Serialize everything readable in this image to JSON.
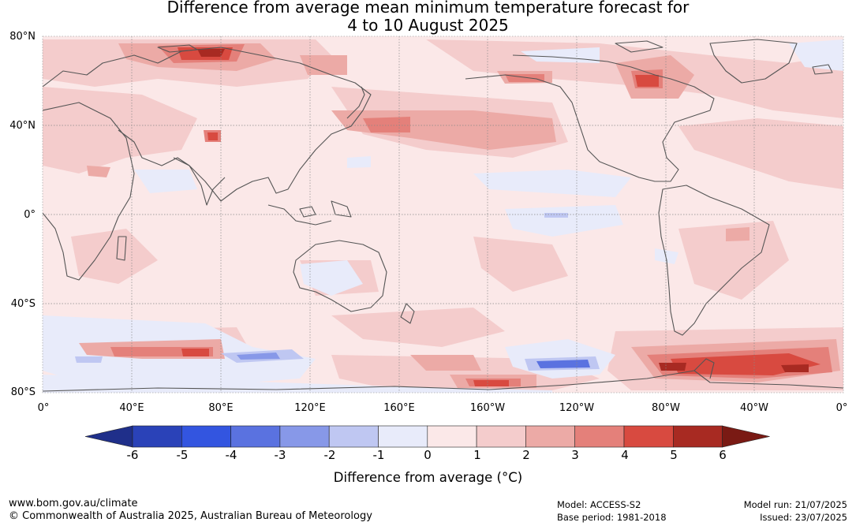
{
  "title": {
    "line1": "Difference from average mean minimum temperature forecast for",
    "line2": "4 to 10 August 2025"
  },
  "map": {
    "lat_labels": [
      "80°N",
      "40°N",
      "0°",
      "40°S",
      "80°S"
    ],
    "lon_labels": [
      "0°",
      "40°E",
      "80°E",
      "120°E",
      "160°E",
      "160°W",
      "120°W",
      "80°W",
      "40°W",
      "0°"
    ],
    "ocean_base_color": "#fbe8e8",
    "coastline_color": "#555555"
  },
  "colorbar": {
    "ticks": [
      "-6",
      "-5",
      "-4",
      "-3",
      "-2",
      "-1",
      "0",
      "1",
      "2",
      "3",
      "4",
      "5",
      "6"
    ],
    "colors": [
      "#1f2f8a",
      "#2a42b8",
      "#3355e0",
      "#5a72e0",
      "#8798e8",
      "#bfc7f2",
      "#e8ebfa",
      "#fbe8e8",
      "#f4cccc",
      "#ecaaa6",
      "#e4807a",
      "#d84a40",
      "#a82a22",
      "#7a1a14"
    ],
    "label": "Difference from average (°C)"
  },
  "footer": {
    "url": "www.bom.gov.au/climate",
    "copyright": "© Commonwealth of Australia 2025, Australian Bureau of Meteorology",
    "model": "Model: ACCESS-S2",
    "base_period": "Base period: 1981-2018",
    "model_run": "Model run: 21/07/2025",
    "issued": "Issued: 23/07/2025"
  }
}
